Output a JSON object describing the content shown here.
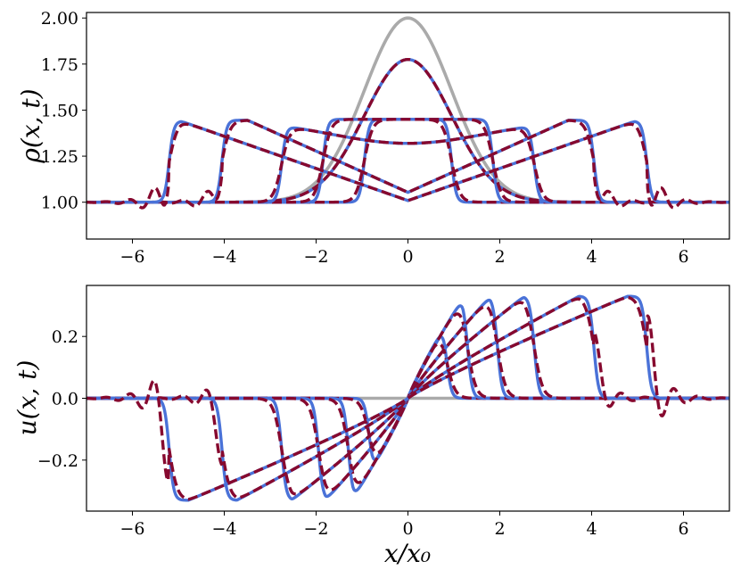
{
  "chart_data": [
    {
      "type": "line",
      "id": "density",
      "xlabel": "",
      "ylabel": "ρ(x, t)",
      "xlim": [
        -7,
        7
      ],
      "ylim": [
        0.8,
        2.03
      ],
      "xticks": [
        -6,
        -4,
        -2,
        0,
        2,
        4,
        6
      ],
      "xtick_labels": [
        "−6",
        "−4",
        "−2",
        "0",
        "2",
        "4",
        "6"
      ],
      "yticks": [
        1.0,
        1.25,
        1.5,
        1.75,
        2.0
      ],
      "ytick_labels": [
        "1.00",
        "1.25",
        "1.50",
        "1.75",
        "2.00"
      ],
      "grid": false,
      "initial_condition": {
        "type": "gaussian",
        "baseline": 1.0,
        "amplitude": 1.0,
        "width": 0.95,
        "color": "#aaaaaa"
      },
      "exact_color": "#4a72d8",
      "approx_color": "#86092f",
      "series": [
        {
          "front": 0.0,
          "height": 0.775,
          "foot": 0.95,
          "wiggle": 0
        },
        {
          "front": 0.95,
          "height": 0.45,
          "foot": 0.85,
          "wiggle": 0
        },
        {
          "front": 1.85,
          "height": 0.45,
          "foot": 0.8,
          "wiggle": 0
        },
        {
          "front": 2.75,
          "height": 0.45,
          "foot": 0.75,
          "wiggle": 0
        },
        {
          "front": 4.05,
          "height": 0.445,
          "foot": 0.65,
          "wiggle": 0.12
        },
        {
          "front": 5.2,
          "height": 0.44,
          "foot": 0.6,
          "wiggle": 0.17
        }
      ]
    },
    {
      "type": "line",
      "id": "velocity",
      "xlabel": "x/x₀",
      "ylabel": "u(x, t)",
      "xlim": [
        -7,
        7
      ],
      "ylim": [
        -0.365,
        0.365
      ],
      "xticks": [
        -6,
        -4,
        -2,
        0,
        2,
        4,
        6
      ],
      "xtick_labels": [
        "−6",
        "−4",
        "−2",
        "0",
        "2",
        "4",
        "6"
      ],
      "yticks": [
        -0.2,
        0.0,
        0.2
      ],
      "ytick_labels": [
        "−0.2",
        "0.0",
        "0.2"
      ],
      "grid": false,
      "initial_condition": {
        "type": "zero",
        "color": "#aaaaaa"
      },
      "exact_color": "#4a72d8",
      "approx_color": "#86092f",
      "series": [
        {
          "front": 0.85,
          "height": 0.23,
          "foot": 0.55,
          "wiggle": 0
        },
        {
          "front": 1.3,
          "height": 0.325,
          "foot": 0.65,
          "wiggle": 0
        },
        {
          "front": 1.95,
          "height": 0.33,
          "foot": 0.7,
          "wiggle": 0
        },
        {
          "front": 2.75,
          "height": 0.33,
          "foot": 0.7,
          "wiggle": 0
        },
        {
          "front": 4.05,
          "height": 0.33,
          "foot": 0.65,
          "wiggle": 0.09
        },
        {
          "front": 5.2,
          "height": 0.33,
          "foot": 0.6,
          "wiggle": 0.17
        }
      ]
    }
  ]
}
